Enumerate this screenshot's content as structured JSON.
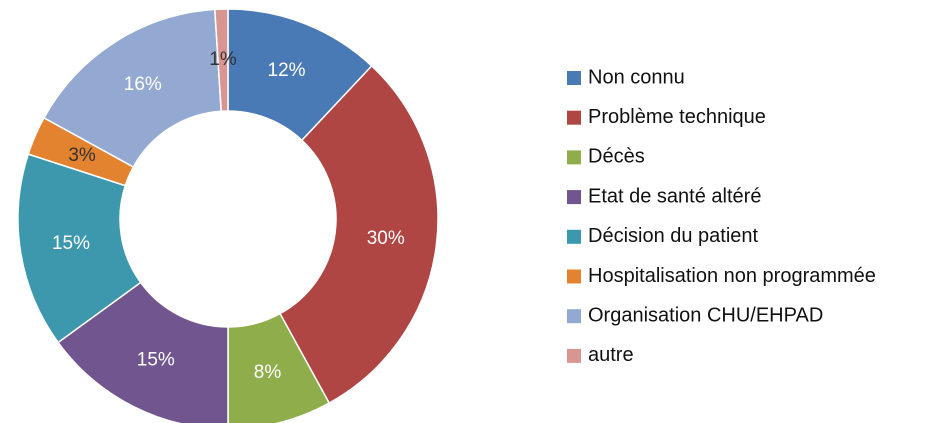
{
  "chart_data": {
    "type": "donut",
    "categories": [
      "Non connu",
      "Problème technique",
      "Décès",
      "Etat de santé altéré",
      "Décision du patient",
      "Hospitalisation non programmée",
      "Organisation CHU/EHPAD",
      "autre"
    ],
    "values": [
      12,
      30,
      8,
      15,
      15,
      3,
      16,
      1
    ],
    "value_labels": [
      "12%",
      "30%",
      "8%",
      "15%",
      "15%",
      "3%",
      "16%",
      "1%"
    ],
    "colors": [
      "#4a7ab5",
      "#b04643",
      "#8fad4a",
      "#70558f",
      "#3d97ad",
      "#e3832f",
      "#93a9d2",
      "#d99592"
    ],
    "legend": "right"
  }
}
